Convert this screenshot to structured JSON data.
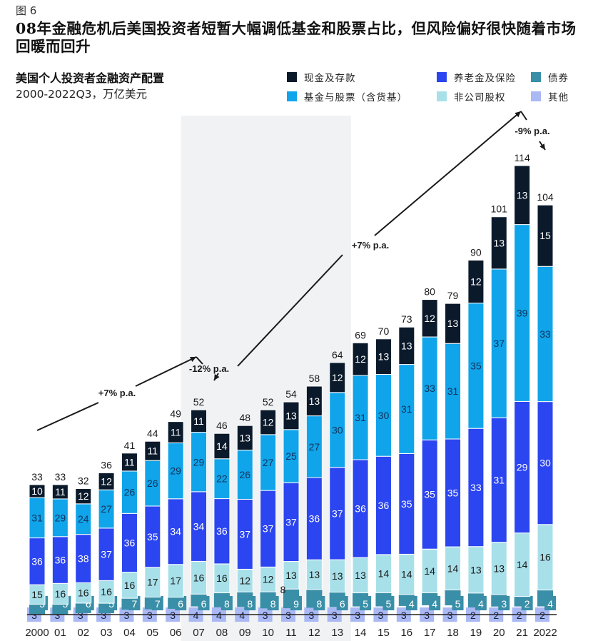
{
  "figure_label": "图 6",
  "title": "08年金融危机后美国投资者短暂大幅调低基金和股票占比，但风险偏好很快随着市场回暖而回升",
  "subtitle": "美国个人投资者金融资产配置",
  "unit_line": "2000-2022Q3，万亿美元",
  "legend": [
    {
      "key": "cash",
      "label": "现金及存款",
      "color": "#0b1a2b"
    },
    {
      "key": "pension",
      "label": "养老金及保险",
      "color": "#2b45f0"
    },
    {
      "key": "bonds",
      "label": "债券",
      "color": "#3a8fa8"
    },
    {
      "key": "funds",
      "label": "基金与股票（含货基）",
      "color": "#10a4ea"
    },
    {
      "key": "private",
      "label": "非公司股权",
      "color": "#a8e0ea"
    },
    {
      "key": "other",
      "label": "其他",
      "color": "#aab8f4"
    }
  ],
  "chart_data": {
    "type": "bar",
    "stacked": true,
    "title": "美国个人投资者金融资产配置",
    "subtitle": "2000-2022Q3，万亿美元",
    "xlabel": "",
    "ylabel": "",
    "categories": [
      "2000",
      "01",
      "02",
      "03",
      "04",
      "05",
      "06",
      "07",
      "08",
      "09",
      "10",
      "11",
      "12",
      "13",
      "14",
      "15",
      "16",
      "17",
      "18",
      "19",
      "20",
      "21",
      "2022"
    ],
    "last_category_note": "Q3",
    "totals": [
      33,
      33,
      32,
      36,
      41,
      44,
      49,
      52,
      46,
      48,
      52,
      54,
      58,
      64,
      69,
      70,
      73,
      80,
      79,
      90,
      101,
      114,
      104
    ],
    "segment_unit": "percent of total",
    "series": [
      {
        "name": "其他",
        "key": "other",
        "values": [
          3,
          3,
          3,
          3,
          3,
          3,
          3,
          4,
          4,
          4,
          3,
          3,
          3,
          3,
          3,
          3,
          3,
          3,
          3,
          2,
          2,
          2,
          2
        ]
      },
      {
        "name": "债券",
        "key": "bonds",
        "values": [
          5,
          5,
          6,
          5,
          7,
          7,
          6,
          6,
          8,
          8,
          8,
          9,
          8,
          6,
          5,
          5,
          4,
          4,
          5,
          4,
          3,
          2,
          4
        ]
      },
      {
        "name": "非公司股权",
        "key": "private",
        "values": [
          15,
          16,
          16,
          16,
          16,
          17,
          17,
          16,
          16,
          12,
          12,
          13,
          13,
          13,
          13,
          14,
          14,
          14,
          14,
          13,
          13,
          14,
          16
        ]
      },
      {
        "name": "养老金及保险",
        "key": "pension",
        "values": [
          36,
          36,
          38,
          37,
          36,
          35,
          34,
          34,
          36,
          37,
          37,
          37,
          36,
          37,
          36,
          36,
          35,
          35,
          35,
          33,
          31,
          29,
          30
        ]
      },
      {
        "name": "基金与股票（含货基）",
        "key": "funds",
        "values": [
          31,
          29,
          24,
          27,
          26,
          26,
          29,
          29,
          22,
          26,
          27,
          25,
          27,
          30,
          31,
          30,
          31,
          33,
          31,
          35,
          37,
          39,
          33
        ]
      },
      {
        "name": "现金及存款",
        "key": "cash",
        "values": [
          10,
          11,
          12,
          12,
          11,
          11,
          11,
          11,
          14,
          13,
          12,
          13,
          13,
          12,
          12,
          13,
          13,
          12,
          13,
          12,
          13,
          13,
          15
        ]
      }
    ],
    "shaded_period": {
      "from": "07",
      "to": "13"
    },
    "annotations": [
      {
        "text": "+7% p.a.",
        "from": "2000",
        "to": "07",
        "direction": "up"
      },
      {
        "text": "-12% p.a.",
        "from": "07",
        "to": "08",
        "direction": "down"
      },
      {
        "text": "+7% p.a.",
        "from": "08",
        "to": "21",
        "direction": "up"
      },
      {
        "text": "-9% p.a.",
        "from": "21",
        "to": "2022",
        "direction": "down"
      }
    ],
    "ylim": [
      0,
      114
    ],
    "grid": false,
    "legend_position": "top-right"
  }
}
